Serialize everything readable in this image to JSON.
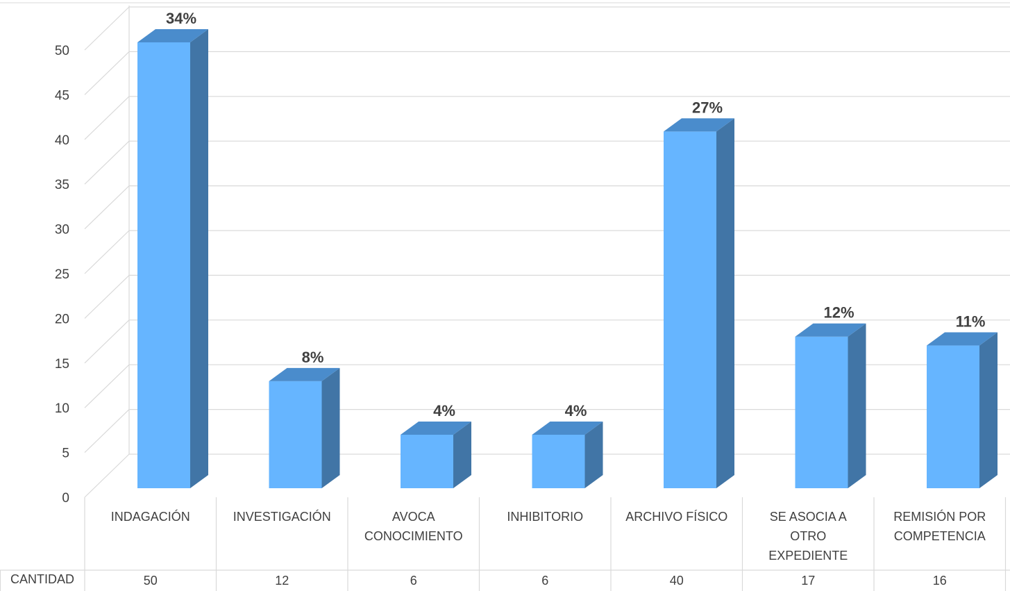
{
  "chart_data": {
    "type": "bar",
    "style": "3d-column-with-data-table",
    "categories": [
      [
        "INDAGACIÓN"
      ],
      [
        "INVESTIGACIÓN"
      ],
      [
        "AVOCA",
        "CONOCIMIENTO"
      ],
      [
        "INHIBITORIO"
      ],
      [
        "ARCHIVO FÍSICO"
      ],
      [
        "SE ASOCIA A",
        "OTRO",
        "EXPEDIENTE"
      ],
      [
        "REMISIÓN POR",
        "COMPETENCIA"
      ]
    ],
    "series": [
      {
        "name": "CANTIDAD",
        "values": [
          50,
          12,
          6,
          6,
          40,
          17,
          16
        ],
        "data_labels": [
          "34%",
          "8%",
          "4%",
          "4%",
          "27%",
          "12%",
          "11%"
        ]
      }
    ],
    "ylim": [
      0,
      50
    ],
    "yticks": [
      0,
      5,
      10,
      15,
      20,
      25,
      30,
      35,
      40,
      45,
      50
    ],
    "grid": true,
    "colors": {
      "bar_front": "#66b5ff",
      "bar_top": "#4a8ccc",
      "bar_side": "#4175a6",
      "grid": "#d9d9d9",
      "text": "#404040",
      "label": "#404040"
    }
  }
}
